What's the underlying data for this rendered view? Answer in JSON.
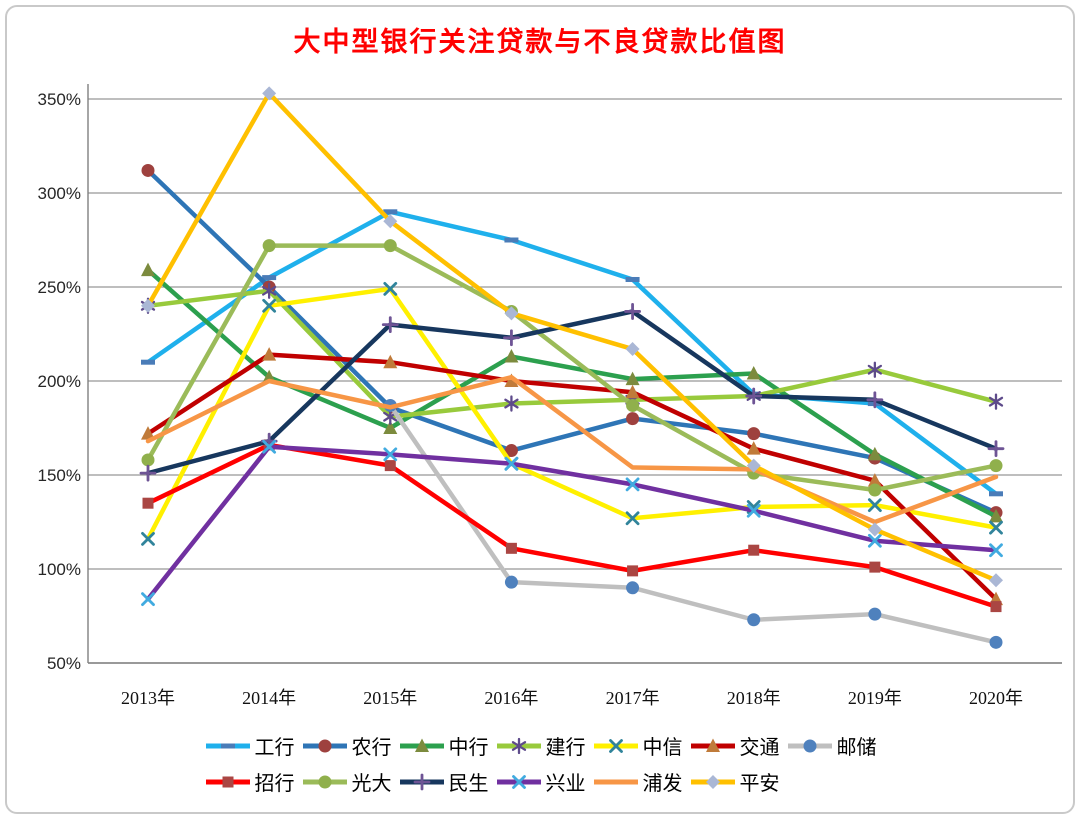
{
  "title": "大中型银行关注贷款与不良贷款比值图",
  "chart_data": {
    "type": "line",
    "title": "大中型银行关注贷款与不良贷款比值图",
    "categories": [
      "2013年",
      "2014年",
      "2015年",
      "2016年",
      "2017年",
      "2018年",
      "2019年",
      "2020年"
    ],
    "y_axis": {
      "min": 50,
      "max": 350,
      "step": 50,
      "tick_labels": [
        "50%",
        "100%",
        "150%",
        "200%",
        "250%",
        "300%",
        "350%"
      ]
    },
    "grid": "horizontal",
    "legend_position": "bottom",
    "legend_rows": [
      [
        "工行",
        "农行",
        "中行",
        "建行",
        "中信",
        "交通",
        "邮储"
      ],
      [
        "招行",
        "光大",
        "民生",
        "兴业",
        "浦发",
        "平安"
      ]
    ],
    "series": [
      {
        "name": "工行",
        "line_color": "#1fb0ec",
        "marker": "dash",
        "marker_color": "#4a7cb8",
        "values": [
          210,
          255,
          290,
          275,
          254,
          193,
          188,
          140
        ]
      },
      {
        "name": "农行",
        "line_color": "#2e75b6",
        "marker": "circle",
        "marker_color": "#9e413e",
        "values": [
          312,
          250,
          186,
          163,
          180,
          172,
          159,
          130
        ]
      },
      {
        "name": "中行",
        "line_color": "#2ca04e",
        "marker": "triangle",
        "marker_color": "#7c8b3e",
        "values": [
          259,
          202,
          175,
          213,
          201,
          204,
          161,
          128
        ]
      },
      {
        "name": "建行",
        "line_color": "#98ca3c",
        "marker": "asterisk",
        "marker_color": "#5e4b8b",
        "values": [
          240,
          248,
          181,
          188,
          190,
          192,
          206,
          189
        ]
      },
      {
        "name": "中信",
        "line_color": "#fff000",
        "marker": "x",
        "marker_color": "#31849b",
        "values": [
          116,
          240,
          249,
          156,
          127,
          133,
          134,
          122
        ]
      },
      {
        "name": "交通",
        "line_color": "#c00000",
        "marker": "triangle",
        "marker_color": "#c07b3a",
        "values": [
          172,
          214,
          210,
          200,
          194,
          164,
          147,
          84
        ]
      },
      {
        "name": "邮储",
        "line_color": "#bfbfbf",
        "marker": "circle",
        "marker_color": "#4f81bd",
        "values": [
          null,
          null,
          187,
          93,
          90,
          73,
          76,
          61
        ]
      },
      {
        "name": "招行",
        "line_color": "#ff0000",
        "marker": "square",
        "marker_color": "#aa4643",
        "values": [
          135,
          166,
          155,
          111,
          99,
          110,
          101,
          80
        ]
      },
      {
        "name": "光大",
        "line_color": "#9bbb59",
        "marker": "circle",
        "marker_color": "#90b04c",
        "values": [
          158,
          272,
          272,
          237,
          187,
          151,
          142,
          155
        ]
      },
      {
        "name": "民生",
        "line_color": "#17375e",
        "marker": "plus",
        "marker_color": "#6e5495",
        "values": [
          151,
          168,
          230,
          223,
          237,
          192,
          190,
          164
        ]
      },
      {
        "name": "兴业",
        "line_color": "#7030a0",
        "marker": "x",
        "marker_color": "#41abe0",
        "values": [
          84,
          165,
          161,
          156,
          145,
          131,
          115,
          110
        ]
      },
      {
        "name": "浦发",
        "line_color": "#f79646",
        "marker": "none",
        "marker_color": "#f79646",
        "values": [
          168,
          200,
          186,
          202,
          154,
          153,
          125,
          149
        ]
      },
      {
        "name": "平安",
        "line_color": "#ffc000",
        "marker": "diamond",
        "marker_color": "#aab7d5",
        "values": [
          240,
          353,
          285,
          236,
          217,
          155,
          121,
          94
        ]
      }
    ]
  }
}
